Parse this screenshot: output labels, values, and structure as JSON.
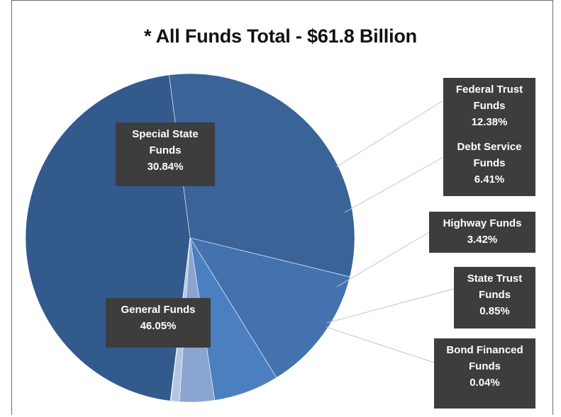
{
  "chart_data": {
    "type": "pie",
    "title": "* All Funds Total - $61.8 Billion",
    "slices": [
      {
        "label_lines": [
          "General Funds"
        ],
        "value_text": "46.05%",
        "value": 46.05,
        "color": "#335a8c"
      },
      {
        "label_lines": [
          "Special State",
          "Funds"
        ],
        "value_text": "30.84%",
        "value": 30.84,
        "color": "#3a6398"
      },
      {
        "label_lines": [
          "Federal Trust",
          "Funds"
        ],
        "value_text": "12.38%",
        "value": 12.38,
        "color": "#4372ae"
      },
      {
        "label_lines": [
          "Debt Service",
          "Funds"
        ],
        "value_text": "6.41%",
        "value": 6.41,
        "color": "#4c7fc0"
      },
      {
        "label_lines": [
          "Highway Funds"
        ],
        "value_text": "3.42%",
        "value": 3.42,
        "color": "#8aa5cf"
      },
      {
        "label_lines": [
          "State Trust",
          "Funds"
        ],
        "value_text": "0.85%",
        "value": 0.85,
        "color": "#b4c6e2"
      },
      {
        "label_lines": [
          "Bond Financed",
          "Funds"
        ],
        "value_text": "0.04%",
        "value": 0.04,
        "color": "#d6e0ef"
      }
    ]
  }
}
